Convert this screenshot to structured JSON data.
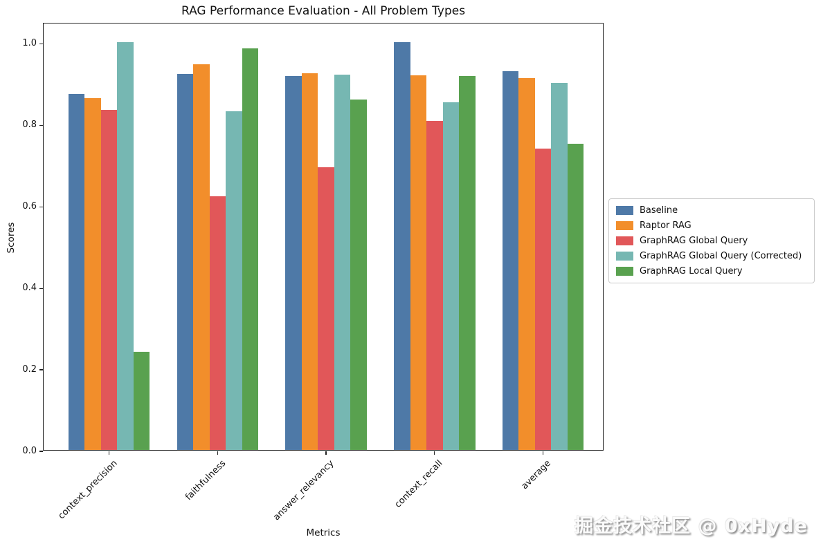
{
  "chart_data": {
    "type": "bar",
    "title": "RAG Performance Evaluation - All Problem Types",
    "xlabel": "Metrics",
    "ylabel": "Scores",
    "categories": [
      "context_precision",
      "faithfulness",
      "answer_relevancy",
      "context_recall",
      "average"
    ],
    "series": [
      {
        "name": "Baseline",
        "color": "#4E79A7",
        "values": [
          0.874,
          0.923,
          0.918,
          1.0,
          0.929
        ]
      },
      {
        "name": "Raptor RAG",
        "color": "#F28E2B",
        "values": [
          0.864,
          0.946,
          0.925,
          0.919,
          0.913
        ]
      },
      {
        "name": "GraphRAG Global Query",
        "color": "#E15759",
        "values": [
          0.835,
          0.623,
          0.693,
          0.808,
          0.74
        ]
      },
      {
        "name": "GraphRAG Global Query (Corrected)",
        "color": "#76B7B2",
        "values": [
          1.0,
          0.831,
          0.921,
          0.853,
          0.901
        ]
      },
      {
        "name": "GraphRAG Local Query",
        "color": "#59A14F",
        "values": [
          0.241,
          0.985,
          0.86,
          0.918,
          0.751
        ]
      }
    ],
    "ylim": [
      0.0,
      1.05
    ],
    "yticks": [
      "0.0",
      "0.2",
      "0.4",
      "0.6",
      "0.8",
      "1.0"
    ],
    "grid": false,
    "legend_position": "center-right-outside"
  },
  "watermark": {
    "text": "掘金技术社区 @ 0xHyde"
  }
}
